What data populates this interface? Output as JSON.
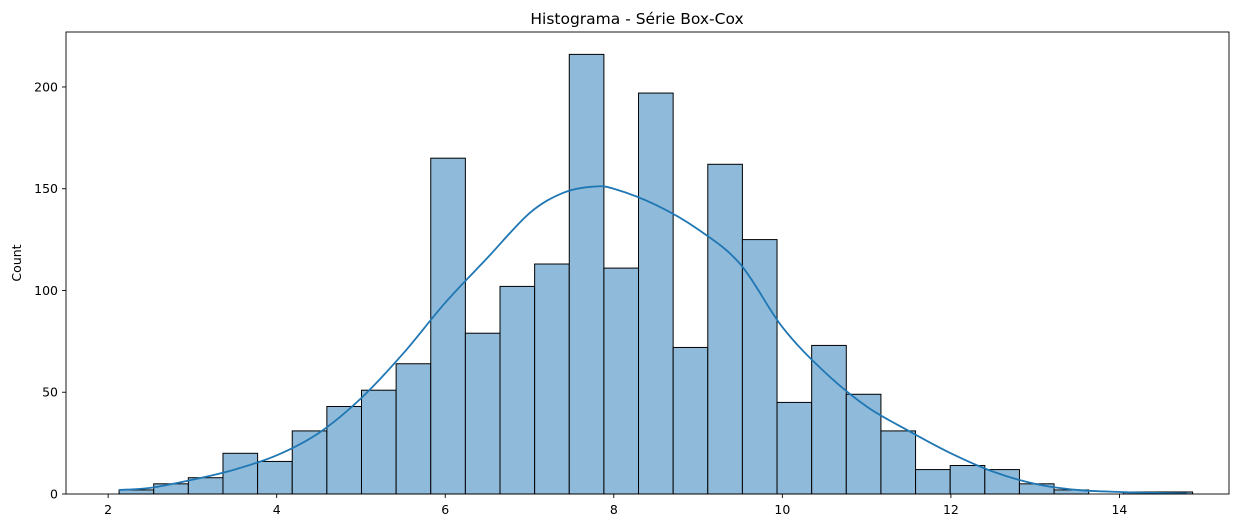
{
  "chart_data": {
    "type": "bar",
    "title": "Histograma - Série Box-Cox",
    "xlabel": "",
    "ylabel": "Count",
    "xlim": [
      1.5,
      15.3
    ],
    "ylim": [
      0,
      227
    ],
    "x_ticks": [
      2,
      4,
      6,
      8,
      10,
      12,
      14
    ],
    "y_ticks": [
      0,
      50,
      100,
      150,
      200
    ],
    "grid": false,
    "colors": {
      "bar_fill": "#8fbad9",
      "bar_edge": "#000000",
      "kde_line": "#1f77b4"
    },
    "bins": {
      "start": 2.13,
      "width": 0.4109,
      "counts": [
        2,
        5,
        8,
        20,
        16,
        31,
        43,
        51,
        64,
        165,
        79,
        102,
        113,
        216,
        111,
        197,
        72,
        162,
        125,
        45,
        73,
        49,
        31,
        12,
        14,
        12,
        5,
        2,
        0,
        1,
        1
      ]
    },
    "kde": {
      "x": [
        2.13,
        2.5,
        3.0,
        3.5,
        4.0,
        4.5,
        5.0,
        5.5,
        6.0,
        6.5,
        7.0,
        7.4,
        7.75,
        8.0,
        8.5,
        9.0,
        9.5,
        10.0,
        10.5,
        11.0,
        11.5,
        12.0,
        12.5,
        13.0,
        13.5,
        14.0,
        14.5,
        14.8
      ],
      "y": [
        2,
        3,
        7,
        12,
        19,
        30,
        47,
        69,
        94,
        116,
        138,
        148,
        151,
        150,
        142,
        130,
        113,
        82,
        60,
        43,
        31,
        20,
        11,
        5,
        2,
        1,
        0.5,
        0.3
      ]
    }
  }
}
